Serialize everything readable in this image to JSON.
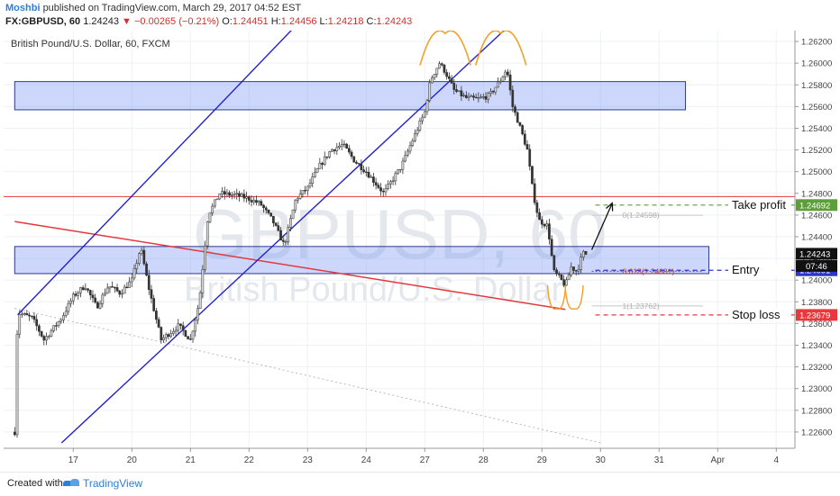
{
  "header": {
    "author": "Moshbi",
    "published_text": "published on TradingView.com, March 29, 2017 04:52 EST",
    "symbol": "FX:GBPUSD, 60",
    "last": "1.24243",
    "change_arrow": "▼",
    "change": "−0.00265 (−0.21%)",
    "o_label": "O:",
    "o": "1.24451",
    "h_label": "H:",
    "h": "1.24456",
    "l_label": "L:",
    "l": "1.24218",
    "c_label": "C:",
    "c": "1.24243"
  },
  "footer": {
    "created": "Created with",
    "brand": "TradingView"
  },
  "chart_data": {
    "type": "candlestick",
    "title": "British Pound/U.S. Dollar, 60, FXCM",
    "watermark_symbol": "GBPUSD, 60",
    "watermark_name": "British Pound/U.S. Dollar",
    "ylim": [
      1.2245,
      1.263
    ],
    "y_ticks": [
      1.226,
      1.228,
      1.23,
      1.232,
      1.234,
      1.236,
      1.238,
      1.24,
      1.242,
      1.244,
      1.246,
      1.248,
      1.25,
      1.252,
      1.254,
      1.256,
      1.258,
      1.26,
      1.262
    ],
    "y_tick_labels": [
      "1.22600",
      "1.22800",
      "1.23000",
      "1.23200",
      "1.23400",
      "1.23600",
      "1.23800",
      "1.24000",
      "1.24200",
      "1.24400",
      "1.24600",
      "1.24800",
      "1.25000",
      "1.25200",
      "1.25400",
      "1.25600",
      "1.25800",
      "1.26000",
      "1.26200"
    ],
    "x_ticks": [
      {
        "label": "17",
        "t": 1.0
      },
      {
        "label": "20",
        "t": 2.0
      },
      {
        "label": "21",
        "t": 3.0
      },
      {
        "label": "22",
        "t": 4.0
      },
      {
        "label": "23",
        "t": 5.0
      },
      {
        "label": "24",
        "t": 6.0
      },
      {
        "label": "27",
        "t": 7.0
      },
      {
        "label": "28",
        "t": 8.0
      },
      {
        "label": "29",
        "t": 9.0
      },
      {
        "label": "30",
        "t": 10.0
      },
      {
        "label": "31",
        "t": 11.0
      },
      {
        "label": "Apr",
        "t": 12.0
      },
      {
        "label": "4",
        "t": 13.0
      }
    ],
    "price_path": [
      [
        0.0,
        1.226
      ],
      [
        0.05,
        1.237
      ],
      [
        0.3,
        1.2365
      ],
      [
        0.5,
        1.2345
      ],
      [
        0.8,
        1.2365
      ],
      [
        1.0,
        1.2385
      ],
      [
        1.2,
        1.2395
      ],
      [
        1.4,
        1.2375
      ],
      [
        1.6,
        1.2395
      ],
      [
        1.8,
        1.2388
      ],
      [
        2.0,
        1.24
      ],
      [
        2.15,
        1.243
      ],
      [
        2.3,
        1.239
      ],
      [
        2.5,
        1.2345
      ],
      [
        2.8,
        1.2358
      ],
      [
        3.0,
        1.2345
      ],
      [
        3.15,
        1.238
      ],
      [
        3.3,
        1.246
      ],
      [
        3.5,
        1.248
      ],
      [
        3.8,
        1.2478
      ],
      [
        4.0,
        1.2475
      ],
      [
        4.2,
        1.247
      ],
      [
        4.4,
        1.2455
      ],
      [
        4.6,
        1.2432
      ],
      [
        4.8,
        1.2475
      ],
      [
        5.0,
        1.2485
      ],
      [
        5.2,
        1.2505
      ],
      [
        5.4,
        1.252
      ],
      [
        5.6,
        1.2525
      ],
      [
        5.8,
        1.251
      ],
      [
        6.0,
        1.25
      ],
      [
        6.3,
        1.248
      ],
      [
        6.6,
        1.2505
      ],
      [
        6.8,
        1.253
      ],
      [
        7.0,
        1.2555
      ],
      [
        7.1,
        1.2585
      ],
      [
        7.25,
        1.26
      ],
      [
        7.35,
        1.2592
      ],
      [
        7.5,
        1.2575
      ],
      [
        7.7,
        1.2568
      ],
      [
        7.9,
        1.2567
      ],
      [
        8.1,
        1.257
      ],
      [
        8.3,
        1.2585
      ],
      [
        8.4,
        1.2595
      ],
      [
        8.5,
        1.256
      ],
      [
        8.6,
        1.2545
      ],
      [
        8.75,
        1.252
      ],
      [
        8.85,
        1.248
      ],
      [
        8.95,
        1.2455
      ],
      [
        9.1,
        1.245
      ],
      [
        9.2,
        1.2408
      ],
      [
        9.3,
        1.2402
      ],
      [
        9.4,
        1.2395
      ],
      [
        9.5,
        1.2412
      ],
      [
        9.6,
        1.2408
      ],
      [
        9.7,
        1.2425
      ],
      [
        9.75,
        1.2424
      ]
    ],
    "zones": [
      {
        "t0": 0.0,
        "t1": 11.45,
        "y0": 1.2557,
        "y1": 1.2583
      },
      {
        "t0": 0.0,
        "t1": 11.85,
        "y0": 1.2406,
        "y1": 1.2431
      }
    ],
    "channel_upper": [
      [
        0.05,
        1.2368
      ],
      [
        6.0,
        1.2702
      ]
    ],
    "channel_lower": [
      [
        0.8,
        1.225
      ],
      [
        9.7,
        1.2698
      ]
    ],
    "red_resistance": [
      [
        0.0,
        1.2454
      ],
      [
        9.4,
        1.2373
      ]
    ],
    "red_horizontal": 1.2477,
    "dotted_trend": [
      [
        0.0,
        1.2374
      ],
      [
        10.0,
        1.225
      ]
    ],
    "fib": [
      {
        "label": "0(1.24598)",
        "value": 1.24598
      },
      {
        "label": "0.618(1.24081)",
        "value": 1.24081
      },
      {
        "label": "1(1.23762)",
        "value": 1.23762
      }
    ],
    "fib_x": [
      9.85,
      11.75
    ],
    "annotations": [
      {
        "label": "Take profit",
        "value": 1.24692,
        "value_label": "1.24692",
        "color": "#5c9e3a"
      },
      {
        "label": "Entry",
        "value": 1.24091,
        "value_label": "1.24091",
        "color": "#2c37c8"
      },
      {
        "label": "Stop loss",
        "value": 1.23679,
        "value_label": "1.23679",
        "color": "#e8383d"
      }
    ],
    "current_price": {
      "value": 1.24243,
      "label": "1.24243",
      "countdown": "07:46"
    },
    "arrow": {
      "t0": 9.85,
      "y0": 1.2428,
      "t1": 10.2,
      "y1": 1.2471
    },
    "double_top_t": [
      7.35,
      8.3
    ],
    "double_bottom_t": [
      9.25,
      9.55
    ]
  }
}
